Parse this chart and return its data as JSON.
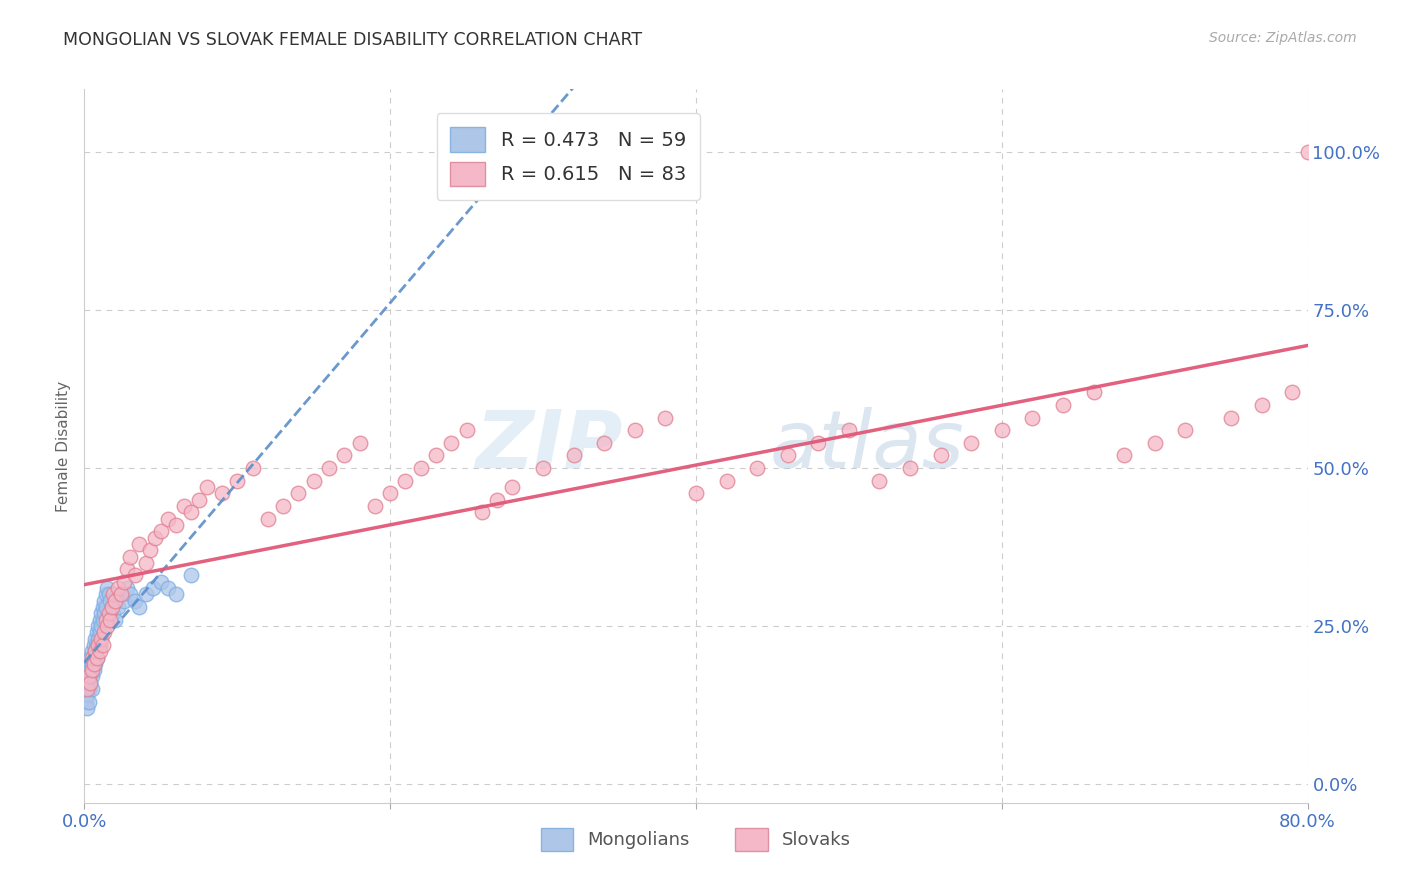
{
  "title": "MONGOLIAN VS SLOVAK FEMALE DISABILITY CORRELATION CHART",
  "source": "Source: ZipAtlas.com",
  "ylabel": "Female Disability",
  "background_color": "#ffffff",
  "mongolian_color": "#aec6e8",
  "slovak_color": "#f4b8c8",
  "mongolian_line_color": "#5b8ec9",
  "slovak_line_color": "#e05878",
  "mongolian_R": 0.473,
  "mongolian_N": 59,
  "slovak_R": 0.615,
  "slovak_N": 83,
  "grid_color": "#cccccc",
  "legend_label_1": "Mongolians",
  "legend_label_2": "Slovaks",
  "xlim": [
    0.0,
    0.8
  ],
  "ylim": [
    -0.03,
    1.1
  ],
  "yticks": [
    0.0,
    0.25,
    0.5,
    0.75,
    1.0
  ],
  "right_ytick_labels": [
    "0.0%",
    "25.0%",
    "50.0%",
    "75.0%",
    "100.0%"
  ],
  "mongolian_x": [
    0.001,
    0.001,
    0.001,
    0.002,
    0.002,
    0.002,
    0.002,
    0.003,
    0.003,
    0.003,
    0.003,
    0.004,
    0.004,
    0.004,
    0.005,
    0.005,
    0.005,
    0.005,
    0.006,
    0.006,
    0.006,
    0.007,
    0.007,
    0.007,
    0.008,
    0.008,
    0.008,
    0.009,
    0.009,
    0.01,
    0.01,
    0.01,
    0.011,
    0.011,
    0.012,
    0.012,
    0.013,
    0.013,
    0.014,
    0.014,
    0.015,
    0.016,
    0.017,
    0.018,
    0.019,
    0.02,
    0.022,
    0.024,
    0.026,
    0.028,
    0.03,
    0.033,
    0.036,
    0.04,
    0.045,
    0.05,
    0.055,
    0.06,
    0.07
  ],
  "mongolian_y": [
    0.17,
    0.15,
    0.13,
    0.18,
    0.16,
    0.14,
    0.12,
    0.19,
    0.17,
    0.15,
    0.13,
    0.2,
    0.18,
    0.16,
    0.21,
    0.19,
    0.17,
    0.15,
    0.22,
    0.2,
    0.18,
    0.23,
    0.21,
    0.19,
    0.24,
    0.22,
    0.2,
    0.25,
    0.23,
    0.26,
    0.24,
    0.22,
    0.27,
    0.25,
    0.28,
    0.26,
    0.29,
    0.27,
    0.3,
    0.28,
    0.31,
    0.3,
    0.29,
    0.28,
    0.27,
    0.26,
    0.28,
    0.3,
    0.29,
    0.31,
    0.3,
    0.29,
    0.28,
    0.3,
    0.31,
    0.32,
    0.31,
    0.3,
    0.33
  ],
  "slovak_x": [
    0.002,
    0.003,
    0.004,
    0.005,
    0.005,
    0.006,
    0.007,
    0.008,
    0.009,
    0.01,
    0.011,
    0.012,
    0.013,
    0.014,
    0.015,
    0.016,
    0.017,
    0.018,
    0.019,
    0.02,
    0.022,
    0.024,
    0.026,
    0.028,
    0.03,
    0.033,
    0.036,
    0.04,
    0.043,
    0.046,
    0.05,
    0.055,
    0.06,
    0.065,
    0.07,
    0.075,
    0.08,
    0.09,
    0.1,
    0.11,
    0.12,
    0.13,
    0.14,
    0.15,
    0.16,
    0.17,
    0.18,
    0.19,
    0.2,
    0.21,
    0.22,
    0.23,
    0.24,
    0.25,
    0.26,
    0.27,
    0.28,
    0.3,
    0.32,
    0.34,
    0.36,
    0.38,
    0.4,
    0.42,
    0.44,
    0.46,
    0.48,
    0.5,
    0.52,
    0.54,
    0.56,
    0.58,
    0.6,
    0.62,
    0.64,
    0.66,
    0.68,
    0.7,
    0.72,
    0.75,
    0.77,
    0.79,
    0.8
  ],
  "slovak_y": [
    0.15,
    0.17,
    0.16,
    0.18,
    0.2,
    0.19,
    0.21,
    0.2,
    0.22,
    0.21,
    0.23,
    0.22,
    0.24,
    0.26,
    0.25,
    0.27,
    0.26,
    0.28,
    0.3,
    0.29,
    0.31,
    0.3,
    0.32,
    0.34,
    0.36,
    0.33,
    0.38,
    0.35,
    0.37,
    0.39,
    0.4,
    0.42,
    0.41,
    0.44,
    0.43,
    0.45,
    0.47,
    0.46,
    0.48,
    0.5,
    0.42,
    0.44,
    0.46,
    0.48,
    0.5,
    0.52,
    0.54,
    0.44,
    0.46,
    0.48,
    0.5,
    0.52,
    0.54,
    0.56,
    0.43,
    0.45,
    0.47,
    0.5,
    0.52,
    0.54,
    0.56,
    0.58,
    0.46,
    0.48,
    0.5,
    0.52,
    0.54,
    0.56,
    0.48,
    0.5,
    0.52,
    0.54,
    0.56,
    0.58,
    0.6,
    0.62,
    0.52,
    0.54,
    0.56,
    0.58,
    0.6,
    0.62,
    1.0
  ],
  "watermark_zip": "ZIP",
  "watermark_atlas": "atlas",
  "watermark_color_zip": "#c8dff0",
  "watermark_color_atlas": "#b8cce0"
}
